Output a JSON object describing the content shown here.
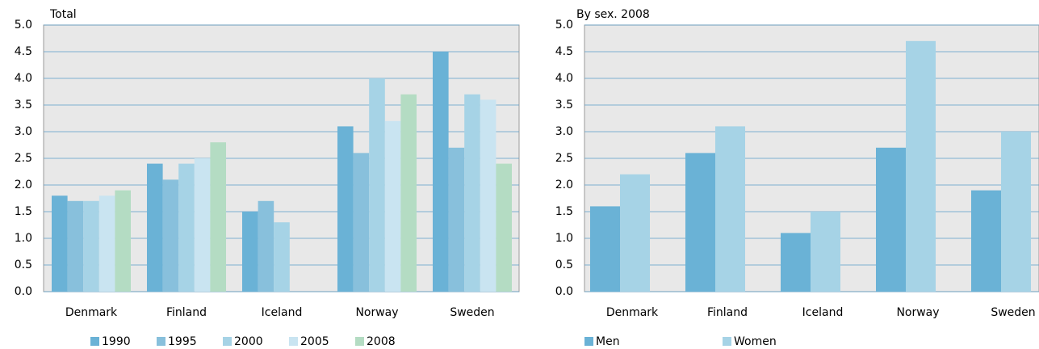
{
  "chart_data": [
    {
      "type": "bar",
      "title": "Total",
      "categories": [
        "Denmark",
        "Finland",
        "Iceland",
        "Norway",
        "Sweden"
      ],
      "series": [
        {
          "name": "1990",
          "color": "#6ab2d6",
          "values": [
            1.8,
            2.4,
            1.5,
            3.1,
            4.5
          ]
        },
        {
          "name": "1995",
          "color": "#88c0dc",
          "values": [
            1.7,
            2.1,
            1.7,
            2.6,
            2.7
          ]
        },
        {
          "name": "2000",
          "color": "#a6d3e6",
          "values": [
            1.7,
            2.4,
            1.3,
            4.0,
            3.7
          ]
        },
        {
          "name": "2005",
          "color": "#c9e4f1",
          "values": [
            1.8,
            2.5,
            null,
            3.2,
            3.6
          ]
        },
        {
          "name": "2008",
          "color": "#b4dcc3",
          "values": [
            1.9,
            2.8,
            null,
            3.7,
            2.4
          ]
        }
      ],
      "ylim": [
        0,
        5
      ],
      "yticks": [
        {
          "value": 0,
          "label": "0.0"
        },
        0.5,
        {
          "value": 1,
          "label": "1.0"
        },
        1.5,
        {
          "value": 2,
          "label": "2.0"
        },
        2.5,
        {
          "value": 3,
          "label": "3.0"
        },
        3.5,
        {
          "value": 4,
          "label": "4.0"
        },
        4.5,
        {
          "value": 5,
          "label": "5.0"
        }
      ],
      "grid": true
    },
    {
      "type": "bar",
      "title": "By sex. 2008",
      "categories": [
        "Denmark",
        "Finland",
        "Iceland",
        "Norway",
        "Sweden"
      ],
      "series": [
        {
          "name": "Men",
          "color": "#6ab2d6",
          "values": [
            1.6,
            2.6,
            1.1,
            2.7,
            1.9
          ]
        },
        {
          "name": "Women",
          "color": "#a6d3e6",
          "values": [
            2.2,
            3.1,
            1.5,
            4.7,
            3.0
          ]
        }
      ],
      "ylim": [
        0,
        5
      ],
      "yticks": [
        {
          "value": 0,
          "label": "0.0"
        },
        0.5,
        {
          "value": 1,
          "label": "1.0"
        },
        1.5,
        {
          "value": 2,
          "label": "2.0"
        },
        2.5,
        {
          "value": 3,
          "label": "3.0"
        },
        3.5,
        {
          "value": 4,
          "label": "4.0"
        },
        4.5,
        {
          "value": 5,
          "label": "5.0"
        }
      ],
      "grid": true
    }
  ]
}
